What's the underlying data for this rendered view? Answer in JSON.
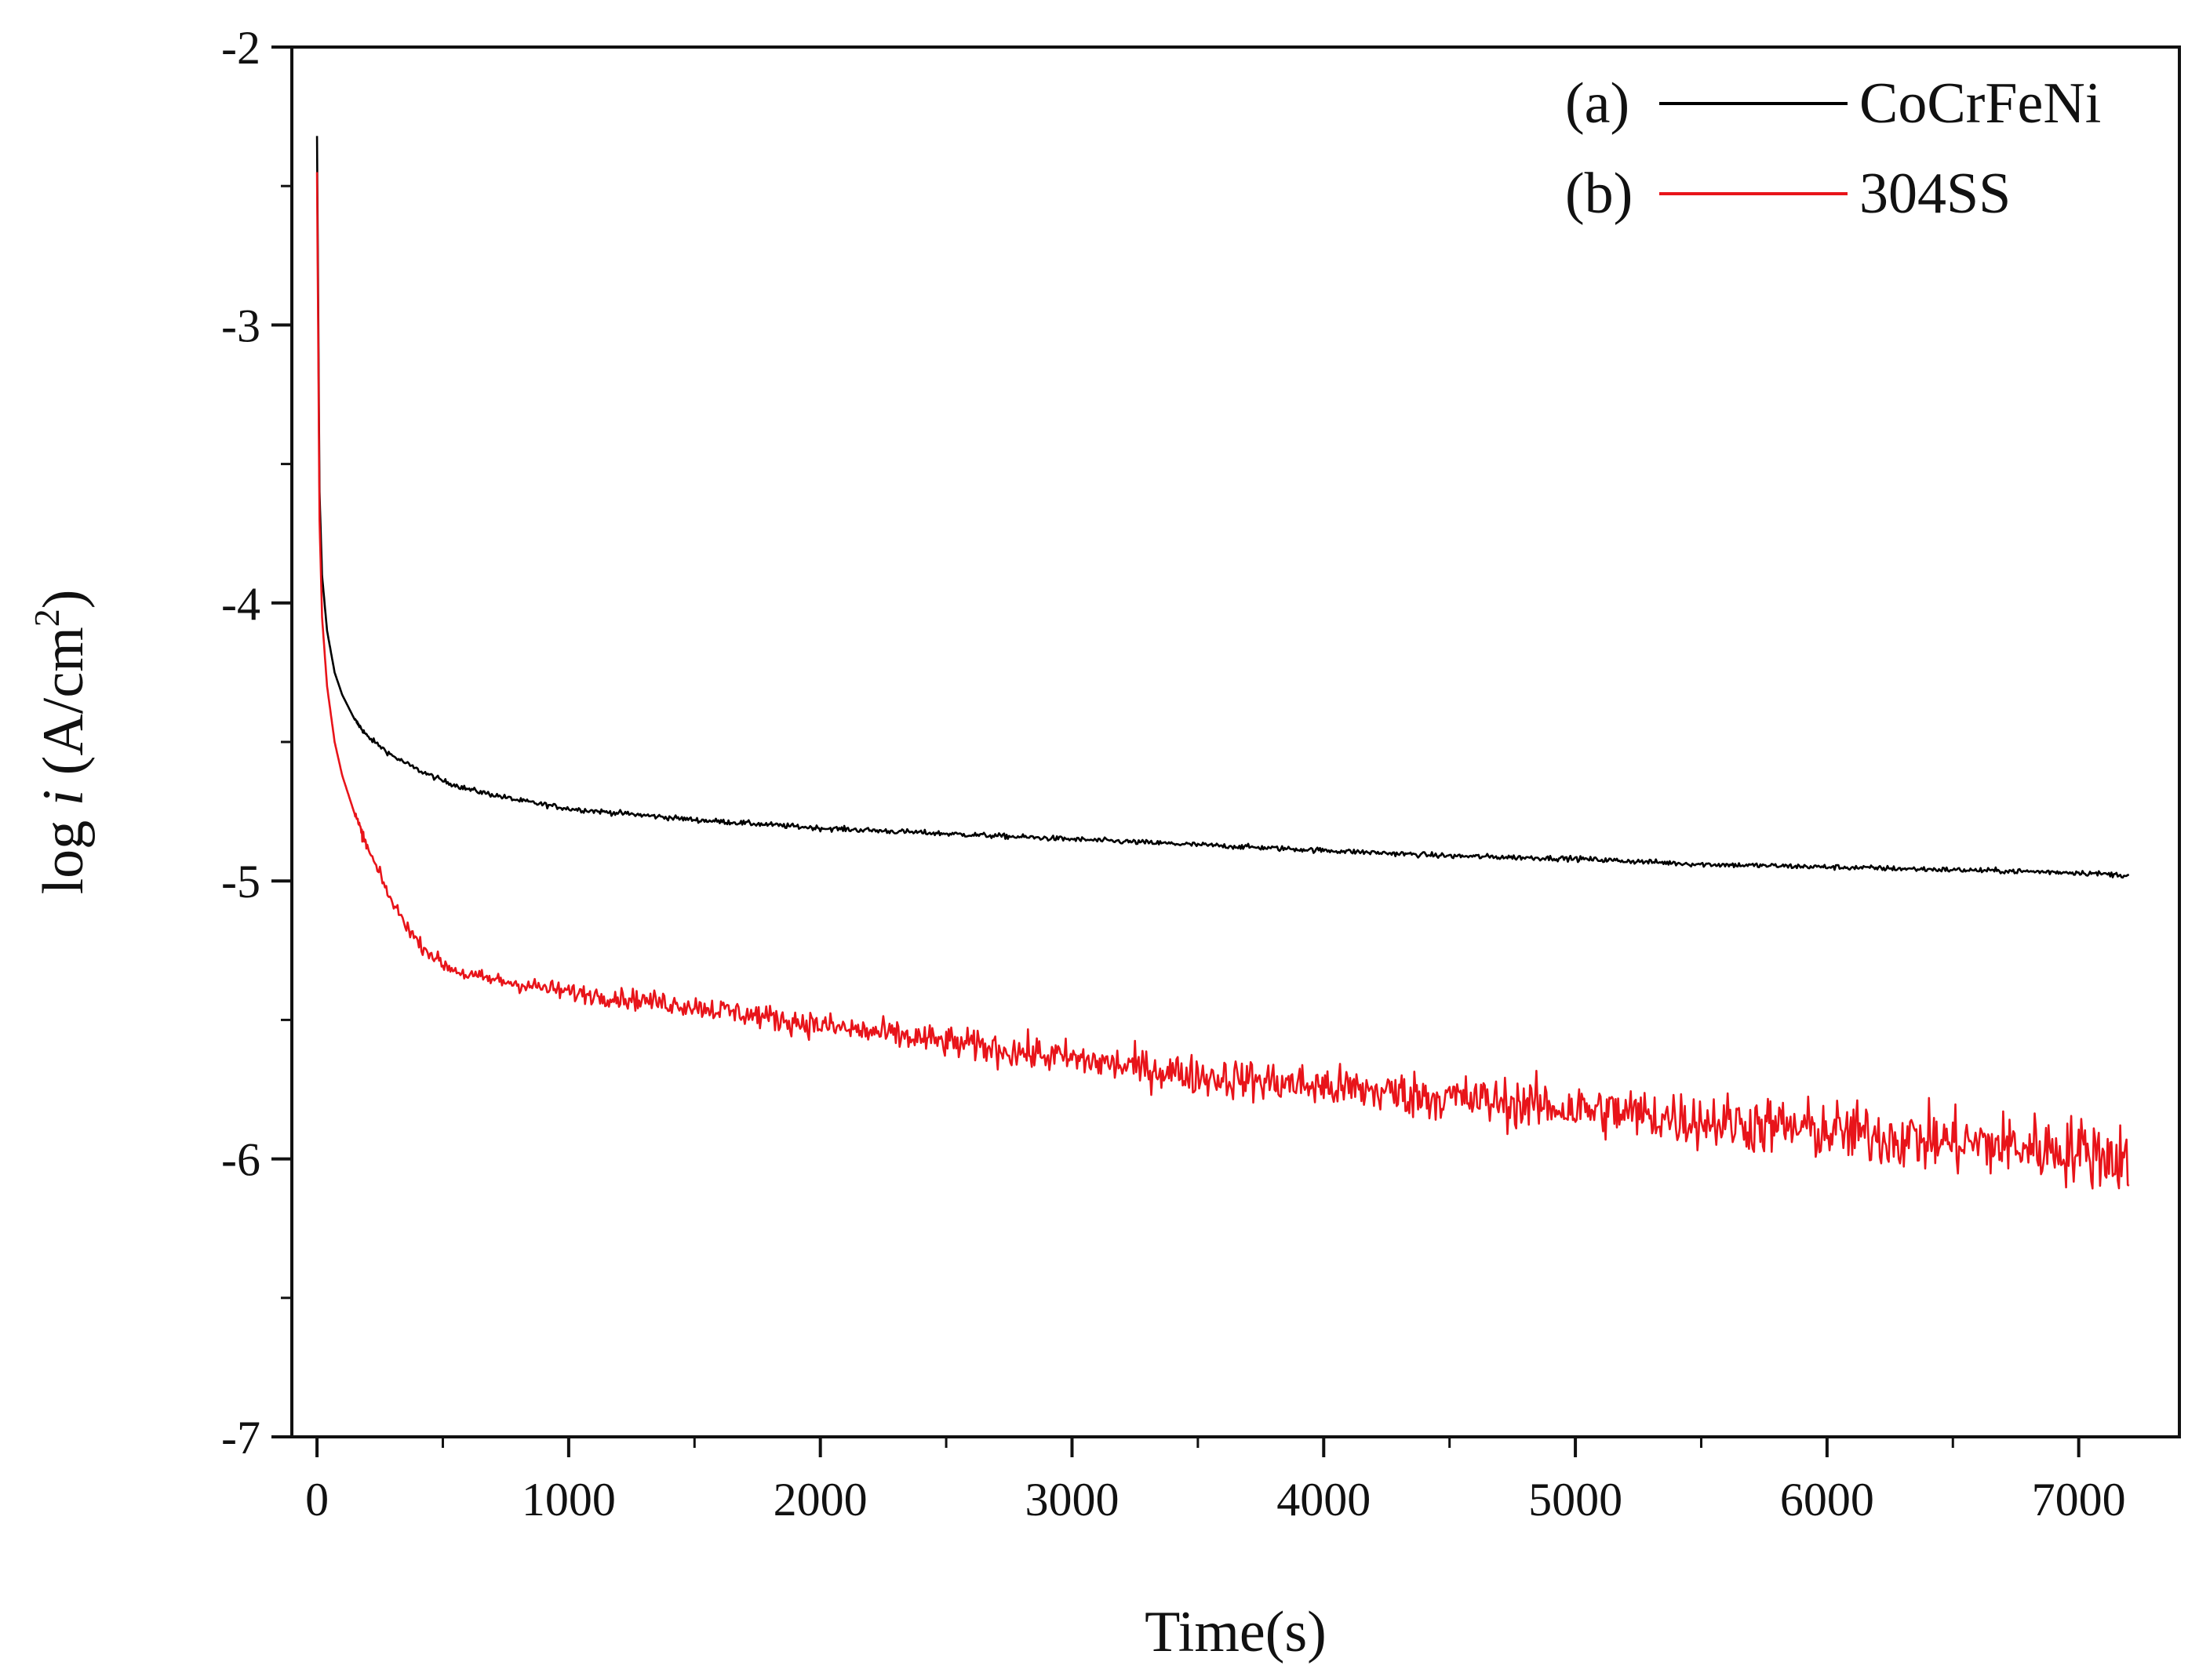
{
  "chart_data": {
    "type": "line",
    "title": "",
    "xlabel": "Time(s)",
    "ylabel_prefix": "log ",
    "ylabel_var": "i",
    "ylabel_unit": " (A/cm",
    "ylabel_sup": "2",
    "ylabel_close": ")",
    "xlim": [
      -100,
      7400
    ],
    "ylim": [
      -7,
      -2
    ],
    "x_ticks": [
      0,
      1000,
      2000,
      3000,
      4000,
      5000,
      6000,
      7000
    ],
    "x_tick_labels": [
      "0",
      "1000",
      "2000",
      "3000",
      "4000",
      "5000",
      "6000",
      "7000"
    ],
    "y_ticks": [
      -2,
      -3,
      -4,
      -5,
      -6,
      -7
    ],
    "y_tick_labels": [
      "-2",
      "-3",
      "-4",
      "-5",
      "-6",
      "-7"
    ],
    "legend_position": "top-right",
    "series": [
      {
        "name": "CoCrFeNi",
        "tag": "(a)",
        "color": "#000000",
        "noise": 0.008,
        "x": [
          0,
          10,
          20,
          40,
          70,
          100,
          150,
          200,
          300,
          400,
          500,
          600,
          800,
          1000,
          1500,
          2000,
          2500,
          3000,
          3500,
          4000,
          4500,
          5000,
          5500,
          6000,
          6500,
          7000,
          7200
        ],
        "y": [
          -2.32,
          -3.6,
          -3.9,
          -4.1,
          -4.25,
          -4.33,
          -4.42,
          -4.48,
          -4.55,
          -4.6,
          -4.64,
          -4.67,
          -4.71,
          -4.74,
          -4.78,
          -4.81,
          -4.83,
          -4.85,
          -4.87,
          -4.89,
          -4.91,
          -4.92,
          -4.94,
          -4.95,
          -4.96,
          -4.97,
          -4.98
        ]
      },
      {
        "name": "304SS",
        "tag": "(b)",
        "color": "#e8141a",
        "noise_start": 0.015,
        "noise_end": 0.11,
        "x": [
          0,
          10,
          20,
          40,
          70,
          100,
          150,
          200,
          300,
          400,
          500,
          600,
          800,
          1000,
          1500,
          2000,
          2500,
          3000,
          3500,
          4000,
          4500,
          5000,
          5500,
          6000,
          6500,
          7000,
          7200
        ],
        "y": [
          -2.45,
          -3.7,
          -4.05,
          -4.3,
          -4.5,
          -4.62,
          -4.76,
          -4.88,
          -5.08,
          -5.22,
          -5.3,
          -5.34,
          -5.37,
          -5.4,
          -5.45,
          -5.52,
          -5.58,
          -5.64,
          -5.7,
          -5.74,
          -5.78,
          -5.82,
          -5.86,
          -5.9,
          -5.94,
          -5.97,
          -6.0
        ]
      }
    ]
  }
}
